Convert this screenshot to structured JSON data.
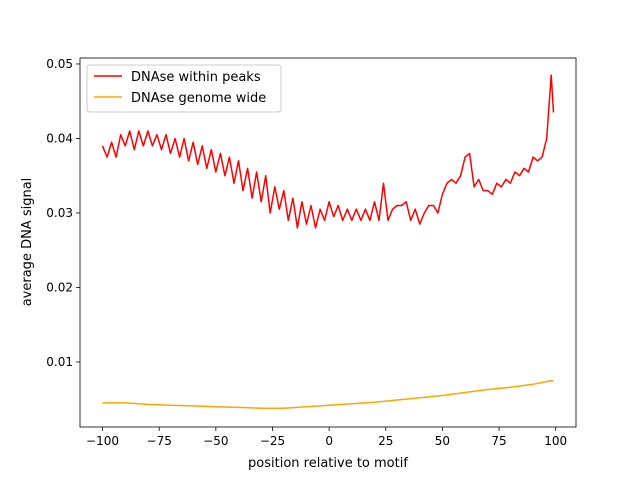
{
  "chart_data": {
    "type": "line",
    "title": "",
    "xlabel": "position relative to motif",
    "ylabel": "average DNA signal",
    "xlim": [
      -109.95,
      108.95
    ],
    "ylim": [
      0.00127,
      0.0508
    ],
    "xticks": [
      -100,
      -75,
      -50,
      -25,
      0,
      25,
      50,
      75,
      100
    ],
    "xtick_labels": [
      "−100",
      "−75",
      "−50",
      "−25",
      "0",
      "25",
      "50",
      "75",
      "100"
    ],
    "yticks": [
      0.01,
      0.02,
      0.03,
      0.04,
      0.05
    ],
    "ytick_labels": [
      "0.01",
      "0.02",
      "0.03",
      "0.04",
      "0.05"
    ],
    "grid": false,
    "legend_position": "top-left",
    "series": [
      {
        "name": "DNAse within peaks",
        "color": "#ff0000",
        "x": [
          -100,
          -98,
          -96,
          -94,
          -92,
          -90,
          -88,
          -86,
          -84,
          -82,
          -80,
          -78,
          -76,
          -74,
          -72,
          -70,
          -68,
          -66,
          -64,
          -62,
          -60,
          -58,
          -56,
          -54,
          -52,
          -50,
          -48,
          -46,
          -44,
          -42,
          -40,
          -38,
          -36,
          -34,
          -32,
          -30,
          -28,
          -26,
          -24,
          -22,
          -20,
          -18,
          -16,
          -14,
          -12,
          -10,
          -8,
          -6,
          -4,
          -2,
          0,
          2,
          4,
          6,
          8,
          10,
          12,
          14,
          16,
          18,
          20,
          22,
          24,
          26,
          28,
          30,
          32,
          34,
          36,
          38,
          40,
          42,
          44,
          46,
          48,
          50,
          52,
          54,
          56,
          58,
          60,
          62,
          64,
          66,
          68,
          70,
          72,
          74,
          76,
          78,
          80,
          82,
          84,
          86,
          88,
          90,
          92,
          94,
          96,
          98,
          99
        ],
        "y": [
          0.039,
          0.0375,
          0.0395,
          0.0375,
          0.0405,
          0.039,
          0.041,
          0.0385,
          0.041,
          0.039,
          0.041,
          0.039,
          0.0405,
          0.0385,
          0.0405,
          0.038,
          0.04,
          0.0375,
          0.04,
          0.037,
          0.0395,
          0.0365,
          0.039,
          0.036,
          0.0385,
          0.0355,
          0.038,
          0.035,
          0.0375,
          0.034,
          0.037,
          0.033,
          0.036,
          0.032,
          0.0355,
          0.0315,
          0.035,
          0.03,
          0.0335,
          0.0305,
          0.033,
          0.029,
          0.032,
          0.028,
          0.0315,
          0.0285,
          0.031,
          0.028,
          0.0305,
          0.029,
          0.0315,
          0.0295,
          0.031,
          0.029,
          0.0305,
          0.029,
          0.0305,
          0.029,
          0.0305,
          0.029,
          0.0315,
          0.029,
          0.034,
          0.029,
          0.0305,
          0.031,
          0.031,
          0.0315,
          0.029,
          0.0305,
          0.0285,
          0.03,
          0.031,
          0.031,
          0.03,
          0.0325,
          0.034,
          0.0345,
          0.034,
          0.035,
          0.0375,
          0.038,
          0.0335,
          0.0345,
          0.033,
          0.033,
          0.0325,
          0.034,
          0.0335,
          0.0345,
          0.034,
          0.0355,
          0.035,
          0.036,
          0.0355,
          0.0375,
          0.037,
          0.0375,
          0.04,
          0.0485,
          0.0435
        ]
      },
      {
        "name": "DNAse genome wide",
        "color": "#ffa500",
        "x": [
          -100,
          -90,
          -80,
          -70,
          -60,
          -50,
          -40,
          -30,
          -20,
          -10,
          0,
          10,
          20,
          30,
          40,
          50,
          60,
          70,
          80,
          90,
          98,
          99
        ],
        "y": [
          0.0045,
          0.0045,
          0.0043,
          0.0042,
          0.0041,
          0.004,
          0.0039,
          0.0038,
          0.0038,
          0.004,
          0.0042,
          0.0044,
          0.0046,
          0.0049,
          0.0052,
          0.0055,
          0.0059,
          0.0063,
          0.0066,
          0.007,
          0.0075,
          0.0074
        ]
      }
    ]
  }
}
